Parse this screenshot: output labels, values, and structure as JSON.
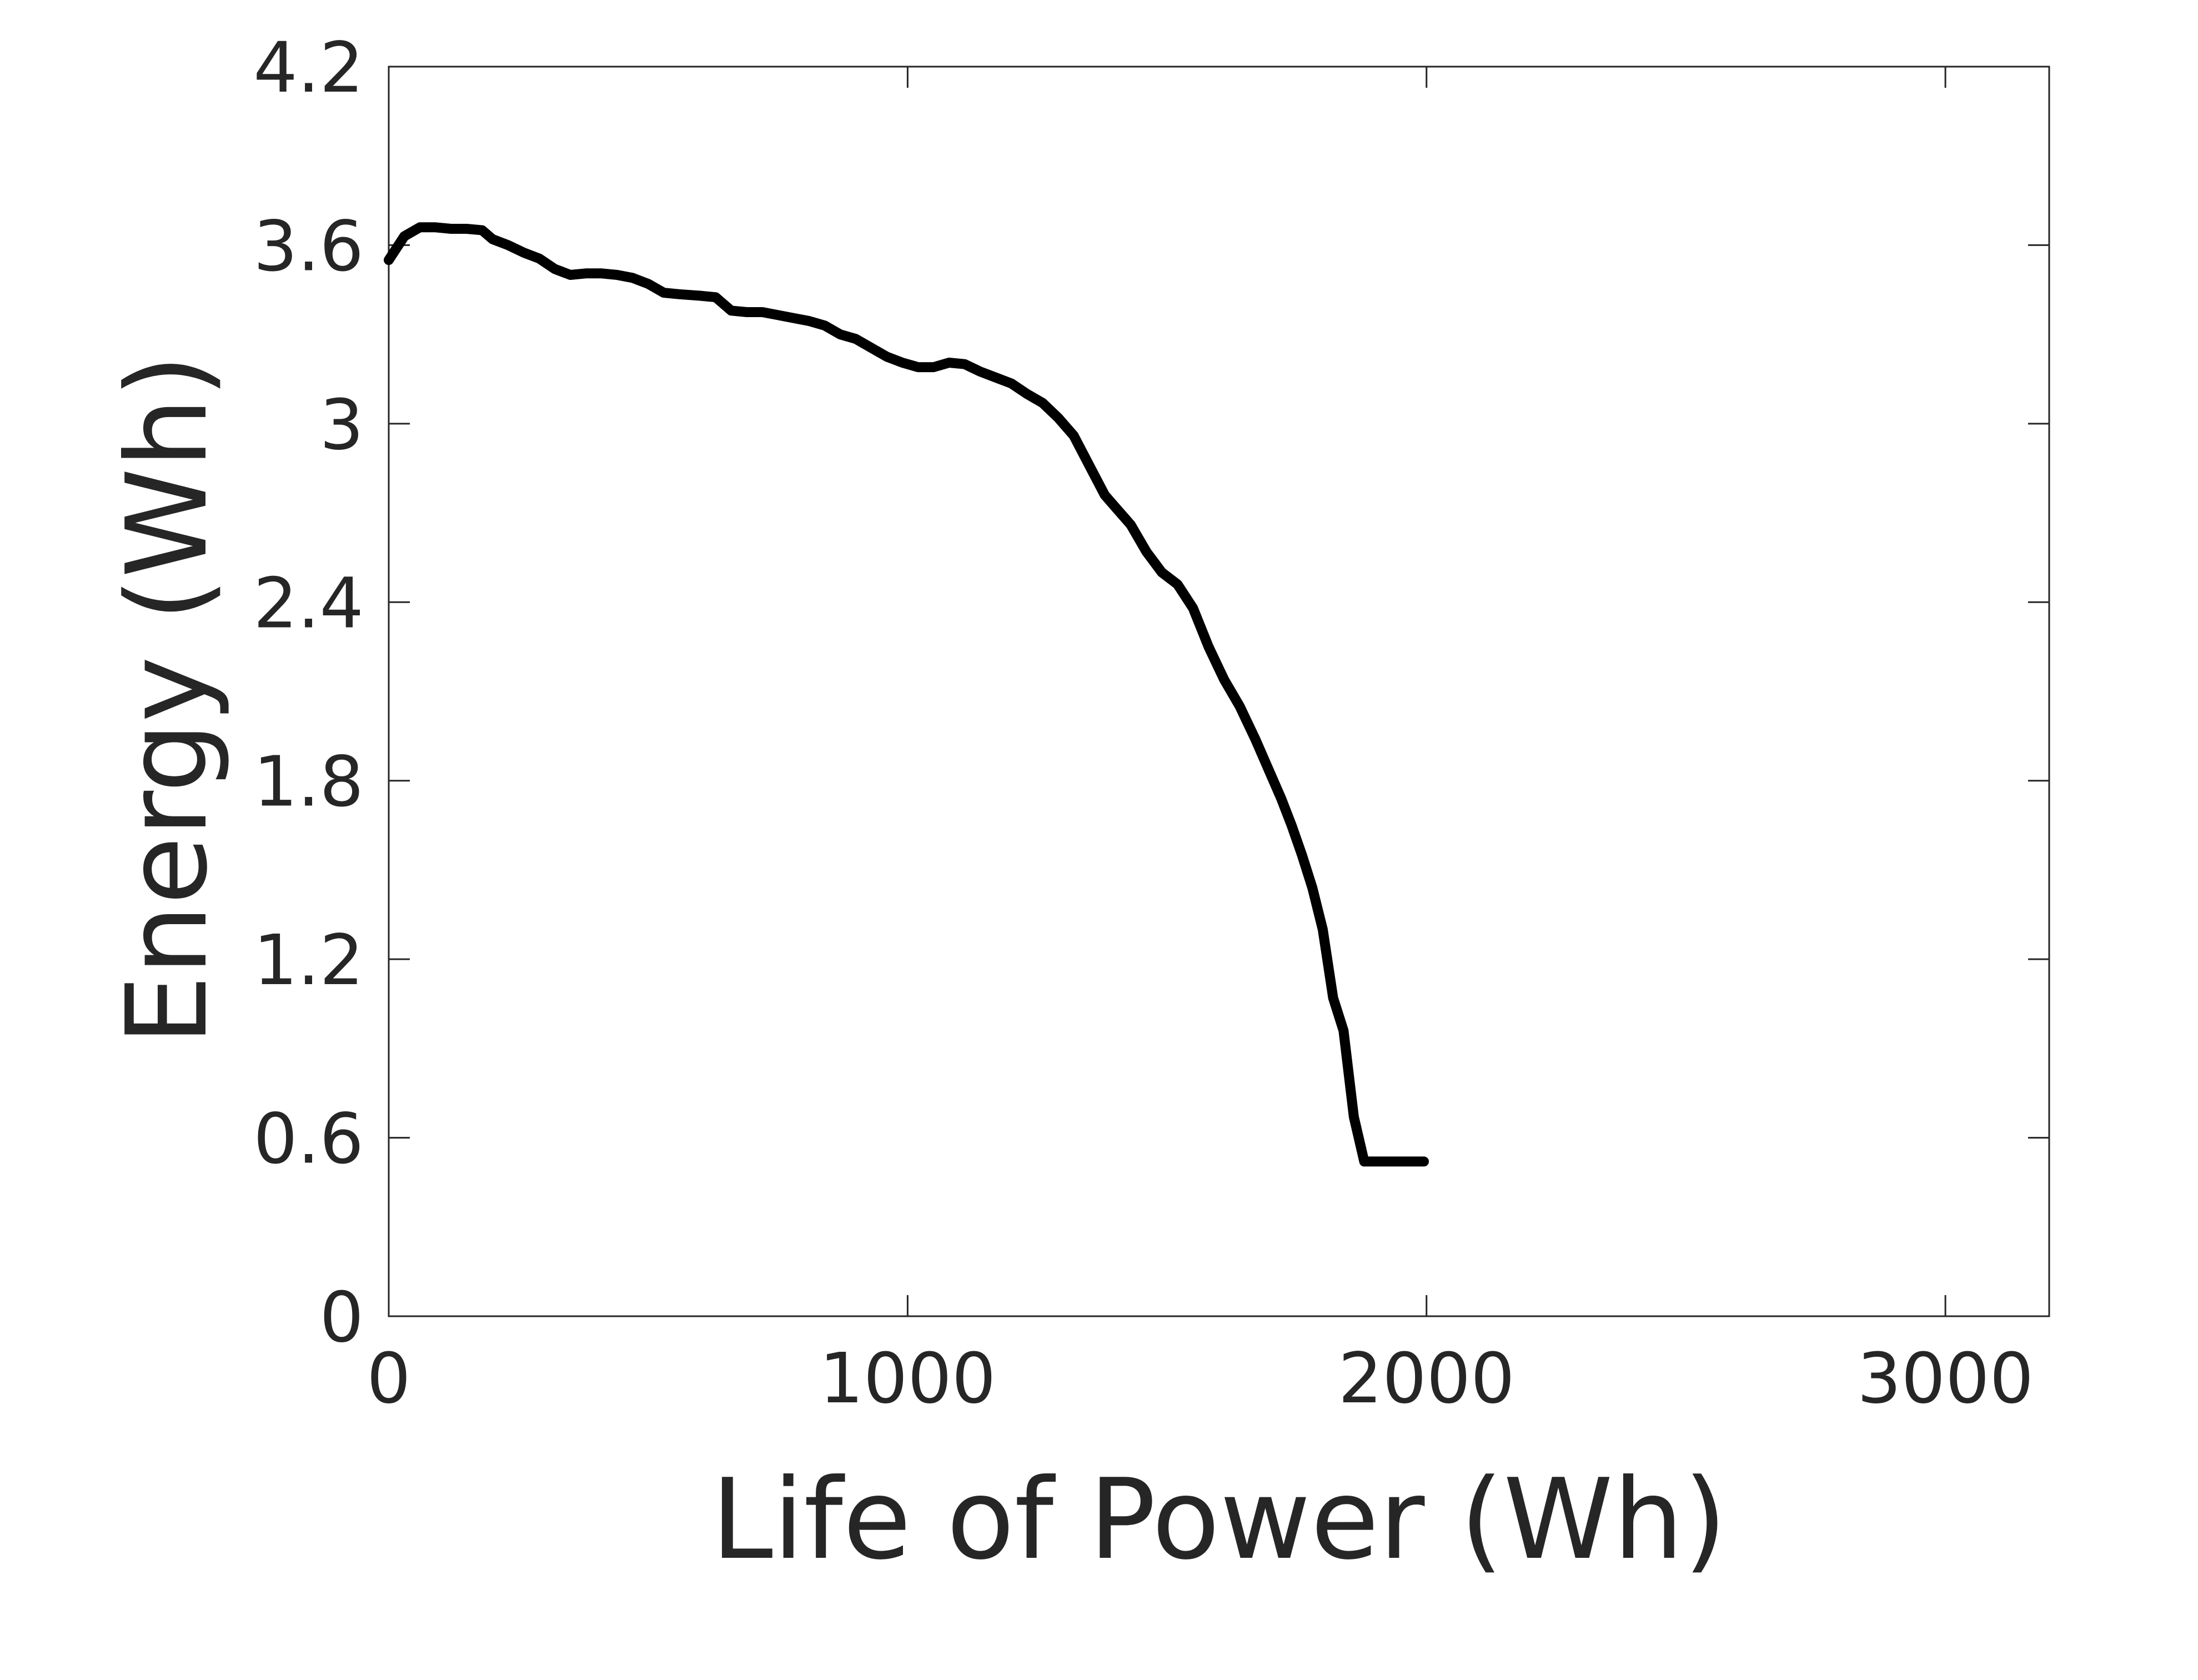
{
  "chart_data": {
    "type": "line",
    "title": "",
    "xlabel": "Life of Power (Wh)",
    "ylabel": "Energy (Wh)",
    "xlim": [
      0,
      3200
    ],
    "ylim": [
      0,
      4.2
    ],
    "xticks": [
      0,
      1000,
      2000,
      3000
    ],
    "xtick_labels": [
      "0",
      "1000",
      "2000",
      "3000"
    ],
    "yticks": [
      0,
      0.6,
      1.2,
      1.8,
      2.4,
      3.0,
      3.6,
      4.2
    ],
    "ytick_labels": [
      "0",
      "0.6",
      "1.2",
      "1.8",
      "2.4",
      "3",
      "3.6",
      "4.2"
    ],
    "grid": false,
    "series": [
      {
        "name": "Energy",
        "color": "#000000",
        "x": [
          0,
          30,
          60,
          90,
          120,
          150,
          180,
          200,
          230,
          260,
          290,
          320,
          350,
          380,
          410,
          440,
          470,
          500,
          530,
          560,
          600,
          630,
          660,
          690,
          720,
          750,
          780,
          810,
          840,
          870,
          900,
          930,
          960,
          990,
          1020,
          1050,
          1080,
          1110,
          1140,
          1170,
          1200,
          1230,
          1260,
          1290,
          1320,
          1350,
          1380,
          1400,
          1430,
          1460,
          1490,
          1520,
          1550,
          1580,
          1610,
          1640,
          1670,
          1700,
          1720,
          1740,
          1760,
          1780,
          1800,
          1820,
          1840,
          1860,
          1880,
          1900,
          1920,
          1940,
          1960,
          1980,
          1995
        ],
        "y": [
          3.55,
          3.63,
          3.66,
          3.66,
          3.655,
          3.655,
          3.65,
          3.62,
          3.6,
          3.575,
          3.555,
          3.52,
          3.5,
          3.505,
          3.505,
          3.5,
          3.49,
          3.47,
          3.44,
          3.435,
          3.43,
          3.425,
          3.38,
          3.375,
          3.375,
          3.365,
          3.355,
          3.345,
          3.33,
          3.3,
          3.285,
          3.255,
          3.225,
          3.205,
          3.19,
          3.19,
          3.205,
          3.2,
          3.175,
          3.155,
          3.135,
          3.1,
          3.07,
          3.02,
          2.96,
          2.86,
          2.76,
          2.72,
          2.66,
          2.57,
          2.5,
          2.46,
          2.38,
          2.25,
          2.14,
          2.05,
          1.94,
          1.82,
          1.74,
          1.65,
          1.55,
          1.44,
          1.3,
          1.07,
          0.96,
          0.67,
          0.52,
          0.52,
          0.52,
          0.52,
          0.52,
          0.52,
          0.52
        ]
      }
    ]
  }
}
